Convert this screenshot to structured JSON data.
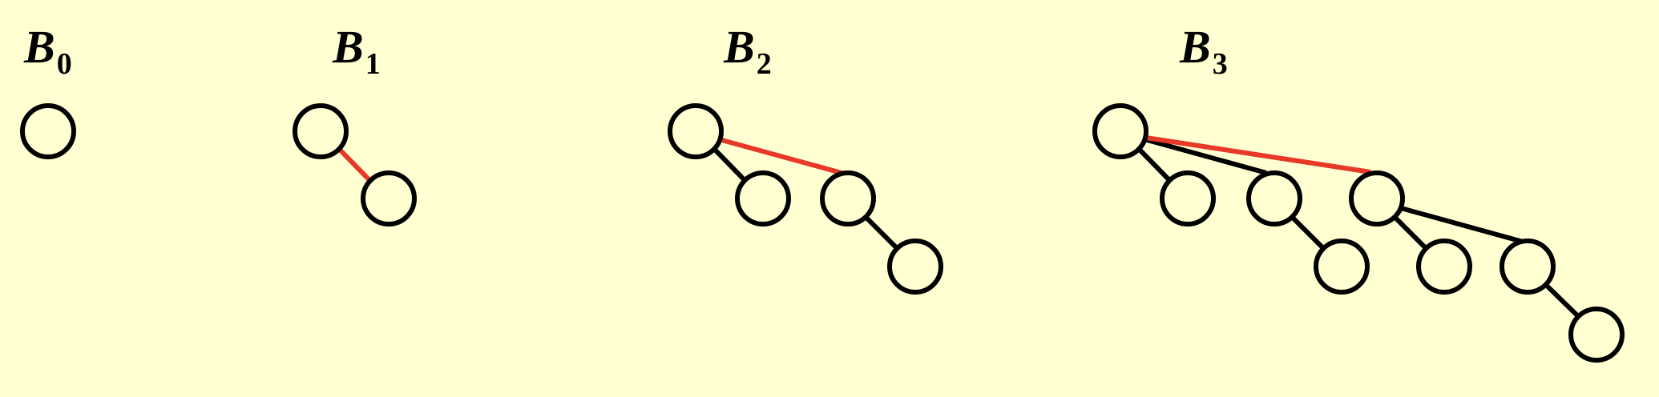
{
  "colors": {
    "background": "#FFFFD2",
    "node_stroke": "#000000",
    "edge": "#000000",
    "link_edge": "#E83828"
  },
  "trees": [
    {
      "id": "b0",
      "label": {
        "letter": "B",
        "subscript": "0"
      },
      "nodes": 1,
      "edges": 0,
      "linking_edges": 0
    },
    {
      "id": "b1",
      "label": {
        "letter": "B",
        "subscript": "1"
      },
      "nodes": 2,
      "edges": 1,
      "linking_edges": 1
    },
    {
      "id": "b2",
      "label": {
        "letter": "B",
        "subscript": "2"
      },
      "nodes": 4,
      "edges": 3,
      "linking_edges": 1
    },
    {
      "id": "b3",
      "label": {
        "letter": "B",
        "subscript": "3"
      },
      "nodes": 8,
      "edges": 7,
      "linking_edges": 1
    }
  ]
}
